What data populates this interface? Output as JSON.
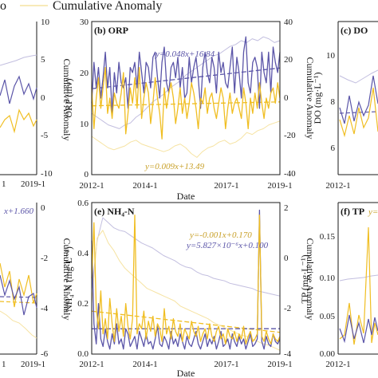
{
  "legend": {
    "partial_label": "o",
    "cumulative_label": "Cumulative Anomaly"
  },
  "colors": {
    "purple": "#5b55a8",
    "yellow": "#f0be22",
    "light_purple": "#c2bedf",
    "light_yellow": "#f6e3a2",
    "axis": "#1a1a1a"
  },
  "panels": {
    "a": {
      "y2_label": "Cumulative Anomaly",
      "y2_ticks": [
        "10",
        "5",
        "0",
        "-5",
        "-10"
      ],
      "x_ticks": [
        "1",
        "2019-1"
      ]
    },
    "b": {
      "title": "(b) ORP",
      "y1_label": "ORP (mv)",
      "y2_label": "Cumulative Anomaly",
      "x_label": "Date",
      "y1_ticks": [
        "30",
        "20",
        "10",
        "0"
      ],
      "y2_ticks": [
        "40",
        "20",
        "0",
        "-20",
        "-40"
      ],
      "x_ticks": [
        "2012-1",
        "2014-1",
        "2017-1",
        "2019-1"
      ],
      "eq_purple": "y=0.048x+16.84",
      "eq_yellow": "y=0.009x+13.49"
    },
    "c": {
      "title": "(c) DO",
      "y1_label": "DO (mg·L⁻¹)",
      "y1_ticks": [
        "10",
        "8",
        "6"
      ],
      "x_ticks": [
        "2012-1"
      ]
    },
    "d": {
      "eq_partial": "x+1.660",
      "y2_label": "Cumulative Anomaly",
      "y2_ticks": [
        "0",
        "-2",
        "-4",
        "-6"
      ],
      "x_ticks": [
        "1",
        "2019-1"
      ]
    },
    "e": {
      "title": "(e) NH₄-N",
      "y1_label": "NH₄-N (mg·L⁻¹)",
      "y2_label": "Cumulative Anomaly",
      "x_label": "Date",
      "y1_ticks": [
        "0.6",
        "0.4",
        "0.2",
        "0.0"
      ],
      "y2_ticks": [
        "2",
        "0",
        "-2",
        "-4"
      ],
      "x_ticks": [
        "2012-1",
        "2014-1",
        "2017-1",
        "2019-1"
      ],
      "eq_yellow": "y=-0.001x+0.170",
      "eq_purple": "y=5.827×10⁻⁶x+0.100"
    },
    "f": {
      "title": "(f) TP",
      "title_eq_partial": "y=",
      "y1_label": "TP (mg·L⁻¹)",
      "y1_ticks": [
        "0.15",
        "0.10",
        "0.05",
        "0.00"
      ],
      "x_ticks": [
        "2012-1"
      ]
    }
  },
  "chart_data": [
    {
      "panel": "b",
      "type": "line",
      "x_start": "2012-1",
      "x_end": "2019-1",
      "ylim": [
        0,
        30
      ],
      "y2lim": [
        -40,
        40
      ],
      "series": [
        {
          "color": "purple",
          "values": [
            14,
            22,
            17,
            21,
            15,
            19,
            24,
            17,
            21,
            12,
            20,
            16,
            22,
            18,
            17,
            19,
            13,
            21,
            20,
            22,
            17,
            24,
            20,
            16,
            22,
            21,
            17,
            23,
            24,
            19,
            15,
            22,
            25,
            18,
            16,
            21,
            22,
            19,
            23,
            17,
            21,
            15,
            16,
            23,
            18,
            21,
            23,
            19,
            13,
            21,
            24,
            20,
            18,
            23,
            21,
            16,
            24,
            20,
            22,
            18,
            17,
            21,
            25,
            16,
            23,
            20,
            15,
            24,
            27,
            18,
            16,
            22,
            23,
            21,
            13,
            24,
            20,
            18,
            24,
            16,
            25,
            22,
            20,
            24
          ]
        },
        {
          "color": "yellow",
          "values": [
            17,
            9,
            15,
            19,
            13,
            17,
            21,
            12,
            15,
            11,
            16,
            14,
            13,
            16,
            20,
            8,
            12,
            17,
            14,
            19,
            13,
            21,
            11,
            15,
            18,
            16,
            10,
            14,
            19,
            15,
            12,
            7,
            17,
            13,
            16,
            18,
            15,
            10,
            13,
            17,
            12,
            15,
            11,
            14,
            18,
            16,
            13,
            9,
            15,
            14,
            17,
            12,
            15,
            16,
            13,
            11,
            14,
            17,
            15,
            9,
            13,
            16,
            12,
            14,
            15,
            13,
            11,
            17,
            14,
            9,
            15,
            12,
            16,
            13,
            18,
            14,
            11,
            15,
            13,
            16,
            17,
            14,
            18,
            15
          ]
        },
        {
          "color": "light_purple",
          "axis": "y2",
          "values": [
            -8,
            -10,
            -12,
            -14,
            -15,
            -16,
            -14,
            -13,
            -10,
            -8,
            -5,
            -2,
            0,
            2,
            5,
            7,
            9,
            12,
            14,
            16,
            18,
            20,
            22,
            23,
            25,
            27,
            28,
            30,
            29,
            31,
            30,
            32,
            31,
            29,
            30
          ]
        },
        {
          "color": "light_yellow",
          "axis": "y2",
          "values": [
            -20,
            -22,
            -24,
            -26,
            -27,
            -26,
            -25,
            -23,
            -22,
            -24,
            -25,
            -26,
            -27,
            -28,
            -27,
            -25,
            -24,
            -26,
            -29,
            -31,
            -28,
            -26,
            -25,
            -23,
            -22,
            -24,
            -23,
            -21,
            -18,
            -19,
            -17,
            -16,
            -14,
            -13,
            -12
          ]
        }
      ],
      "trend_purple": [
        16.84,
        20.9
      ],
      "trend_yellow": [
        13.49,
        14.25
      ]
    },
    {
      "panel": "e",
      "type": "line",
      "x_start": "2012-1",
      "x_end": "2019-1",
      "ylim": [
        0,
        0.6
      ],
      "y2lim": [
        -4,
        2
      ],
      "series": [
        {
          "color": "purple",
          "values": [
            0.45,
            0.12,
            0.04,
            0.2,
            0.06,
            0.03,
            0.1,
            0.05,
            0.02,
            0.08,
            0.04,
            0.12,
            0.04,
            0.06,
            0.02,
            0.1,
            0.08,
            0.03,
            0.05,
            0.07,
            0.02,
            0.09,
            0.06,
            0.03,
            0.08,
            0.04,
            0.05,
            0.02,
            0.06,
            0.11,
            0.04,
            0.03,
            0.07,
            0.05,
            0.02,
            0.09,
            0.04,
            0.06,
            0.03,
            0.08,
            0.05,
            0.02,
            0.07,
            0.04,
            0.03,
            0.06,
            0.09,
            0.04,
            0.02,
            0.05,
            0.08,
            0.03,
            0.06,
            0.04,
            0.07,
            0.02,
            0.05,
            0.09,
            0.03,
            0.04,
            0.06,
            0.02,
            0.08,
            0.05,
            0.03,
            0.07,
            0.04,
            0.06,
            0.02,
            0.05,
            0.08,
            0.03,
            0.04,
            0.06,
            0.57,
            0.05,
            0.02,
            0.07,
            0.04,
            0.03,
            0.08,
            0.05,
            0.04,
            0.06
          ]
        },
        {
          "color": "yellow",
          "values": [
            0.3,
            0.52,
            0.18,
            0.1,
            0.25,
            0.08,
            0.14,
            0.06,
            0.22,
            0.12,
            0.05,
            0.18,
            0.09,
            0.15,
            0.07,
            0.2,
            0.11,
            0.06,
            0.14,
            0.55,
            0.08,
            0.12,
            0.1,
            0.17,
            0.06,
            0.13,
            0.09,
            0.15,
            0.07,
            0.12,
            0.1,
            0.05,
            0.18,
            0.08,
            0.11,
            0.06,
            0.14,
            0.09,
            0.07,
            0.12,
            0.05,
            0.1,
            0.08,
            0.06,
            0.13,
            0.09,
            0.07,
            0.11,
            0.05,
            0.08,
            0.1,
            0.06,
            0.12,
            0.07,
            0.05,
            0.09,
            0.11,
            0.06,
            0.08,
            0.04,
            0.1,
            0.07,
            0.06,
            0.09,
            0.05,
            0.08,
            0.06,
            0.11,
            0.04,
            0.07,
            0.09,
            0.05,
            0.06,
            0.08,
            0.55,
            0.07,
            0.05,
            0.09,
            0.06,
            0.04,
            0.08,
            0.06,
            0.05,
            0.07
          ]
        },
        {
          "color": "light_purple",
          "axis": "y2",
          "values": [
            -1.5,
            0.5,
            1.4,
            1.2,
            1.0,
            0.9,
            0.85,
            0.7,
            0.55,
            0.4,
            0.3,
            0.2,
            0.05,
            -0.1,
            -0.2,
            -0.3,
            -0.45,
            -0.55,
            -0.6,
            -0.75,
            -0.85,
            -0.9,
            -1.0,
            -1.05,
            -1.1,
            -1.2,
            -1.25,
            -1.3,
            -1.35,
            -1.4,
            -1.5,
            -1.55,
            -1.6,
            -1.65,
            -1.7
          ]
        },
        {
          "color": "light_yellow",
          "axis": "y2",
          "values": [
            -2,
            0.6,
            0.9,
            0.4,
            0.1,
            -0.3,
            -0.6,
            -0.8,
            -1.0,
            -1.2,
            -1.4,
            -1.5,
            -1.6,
            -1.7,
            -1.8,
            -1.9,
            -2.1,
            -2.2,
            -2.3,
            -2.4,
            -2.5,
            -2.6,
            -2.75,
            -2.85,
            -2.95,
            -3.05,
            -3.15,
            -3.25,
            -3.3,
            -3.4,
            -3.5,
            -3.6,
            -3.65,
            -3.75,
            -3.85
          ]
        }
      ],
      "trend_yellow": [
        0.17,
        0.086
      ],
      "trend_purple": [
        0.1,
        0.1005
      ]
    }
  ]
}
